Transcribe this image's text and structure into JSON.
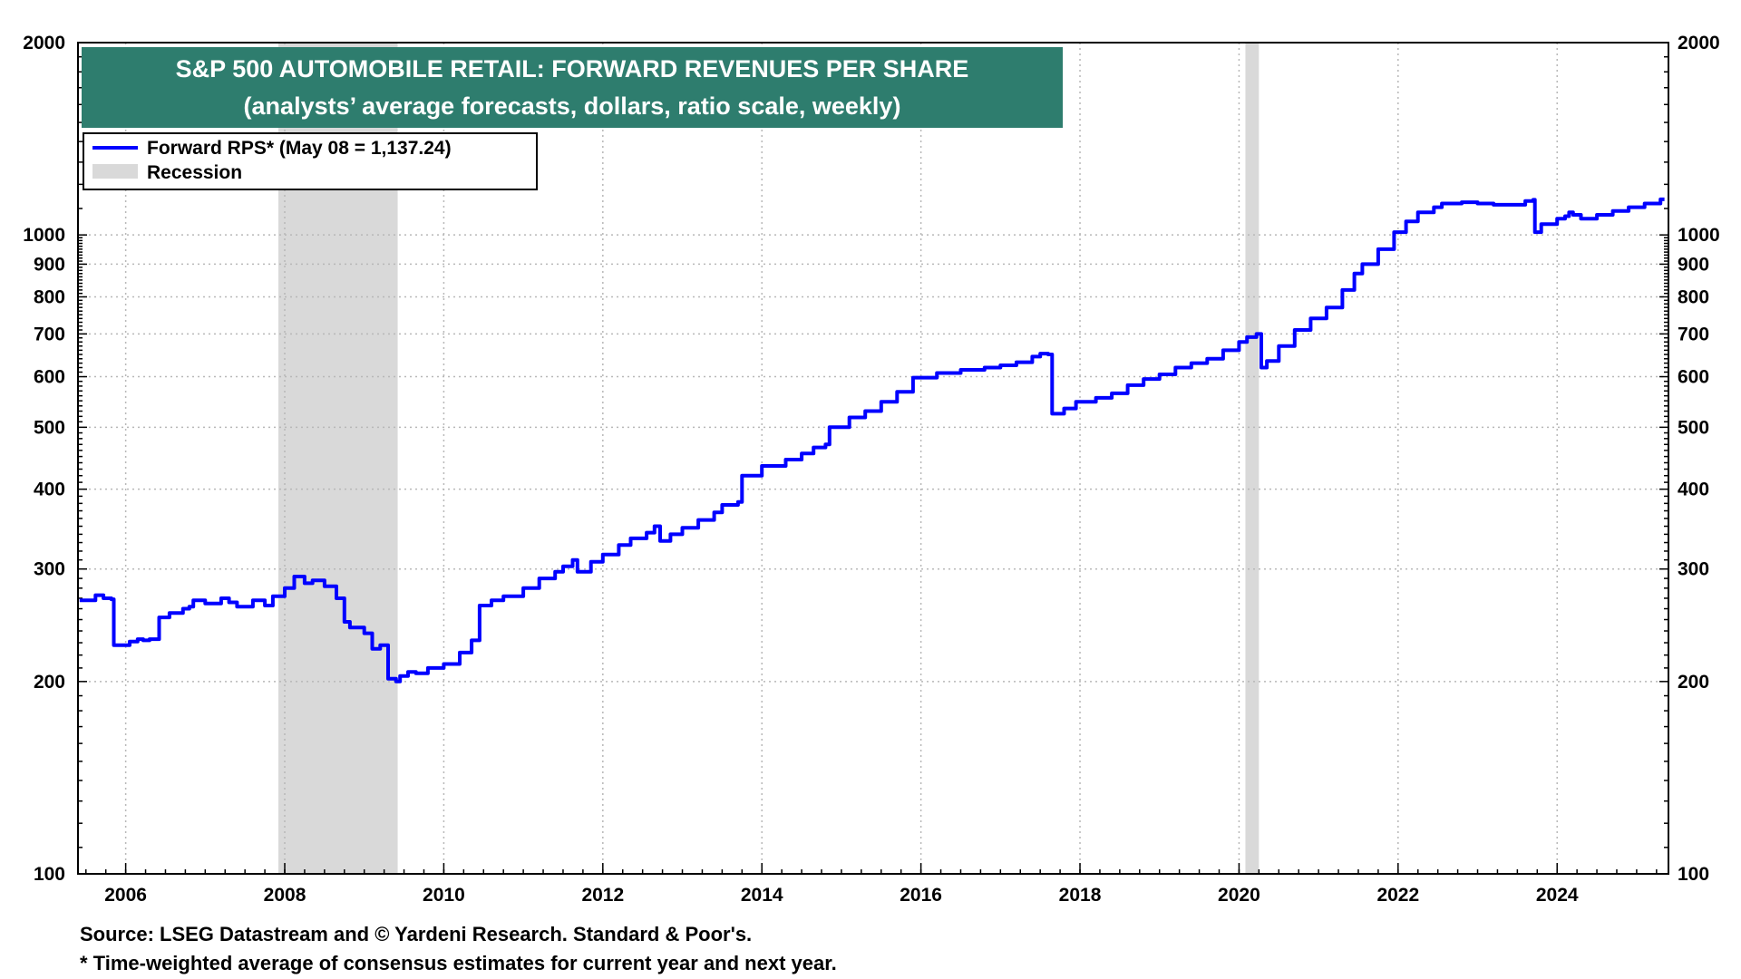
{
  "chart_data": {
    "type": "line",
    "title": "S&P 500 AUTOMOBILE RETAIL: FORWARD REVENUES PER SHARE",
    "subtitle": "(analysts’ average forecasts, dollars, ratio scale, weekly)",
    "y_scale": "log",
    "ylim": [
      100,
      2000
    ],
    "xlim": [
      2005.4,
      2025.4
    ],
    "y_ticks_labeled": [
      100,
      200,
      300,
      400,
      500,
      600,
      700,
      800,
      900,
      1000,
      2000
    ],
    "x_ticks": [
      2006,
      2008,
      2010,
      2012,
      2014,
      2016,
      2018,
      2020,
      2022,
      2024
    ],
    "grid": true,
    "legend_placement": "top-left",
    "legend": [
      {
        "label": "Forward RPS* (May 08 = 1,137.24)",
        "kind": "line",
        "color": "#0000ff"
      },
      {
        "label": "Recession",
        "kind": "band",
        "color": "#d9d9d9"
      }
    ],
    "recessions": [
      {
        "start": 2007.92,
        "end": 2009.42
      },
      {
        "start": 2020.08,
        "end": 2020.25
      }
    ],
    "series": [
      {
        "name": "Forward RPS*",
        "color": "#0000ff",
        "x": [
          2005.42,
          2005.55,
          2005.62,
          2005.72,
          2005.82,
          2005.85,
          2006.05,
          2006.15,
          2006.22,
          2006.3,
          2006.42,
          2006.55,
          2006.72,
          2006.8,
          2006.85,
          2007.0,
          2007.2,
          2007.3,
          2007.4,
          2007.6,
          2007.75,
          2007.85,
          2008.0,
          2008.12,
          2008.25,
          2008.35,
          2008.5,
          2008.65,
          2008.75,
          2008.82,
          2009.0,
          2009.1,
          2009.2,
          2009.3,
          2009.4,
          2009.45,
          2009.55,
          2009.65,
          2009.8,
          2010.0,
          2010.2,
          2010.35,
          2010.45,
          2010.6,
          2010.75,
          2011.0,
          2011.2,
          2011.4,
          2011.5,
          2011.62,
          2011.68,
          2011.85,
          2012.0,
          2012.2,
          2012.35,
          2012.55,
          2012.65,
          2012.72,
          2012.85,
          2013.0,
          2013.2,
          2013.4,
          2013.5,
          2013.7,
          2013.75,
          2014.0,
          2014.3,
          2014.5,
          2014.65,
          2014.8,
          2014.85,
          2015.1,
          2015.3,
          2015.5,
          2015.7,
          2015.9,
          2016.2,
          2016.5,
          2016.8,
          2017.0,
          2017.2,
          2017.4,
          2017.5,
          2017.6,
          2017.65,
          2017.8,
          2017.95,
          2018.2,
          2018.4,
          2018.6,
          2018.8,
          2019.0,
          2019.2,
          2019.4,
          2019.6,
          2019.8,
          2020.0,
          2020.1,
          2020.22,
          2020.28,
          2020.35,
          2020.5,
          2020.7,
          2020.9,
          2021.1,
          2021.3,
          2021.45,
          2021.55,
          2021.75,
          2021.95,
          2022.1,
          2022.25,
          2022.45,
          2022.55,
          2022.8,
          2023.0,
          2023.2,
          2023.4,
          2023.6,
          2023.7,
          2023.72,
          2023.8,
          2024.0,
          2024.1,
          2024.15,
          2024.2,
          2024.3,
          2024.5,
          2024.7,
          2024.9,
          2025.1,
          2025.3,
          2025.35
        ],
        "values": [
          268,
          268,
          273,
          270,
          269,
          228,
          231,
          233,
          232,
          233,
          252,
          256,
          260,
          262,
          268,
          265,
          270,
          266,
          262,
          268,
          263,
          272,
          280,
          292,
          285,
          288,
          282,
          270,
          248,
          243,
          238,
          225,
          228,
          202,
          200,
          204,
          207,
          206,
          210,
          213,
          222,
          232,
          263,
          268,
          272,
          280,
          290,
          297,
          303,
          310,
          297,
          308,
          316,
          327,
          335,
          342,
          350,
          332,
          340,
          348,
          358,
          368,
          378,
          382,
          420,
          435,
          445,
          455,
          465,
          470,
          500,
          518,
          530,
          548,
          568,
          598,
          608,
          615,
          620,
          625,
          632,
          645,
          652,
          650,
          525,
          535,
          548,
          556,
          565,
          582,
          595,
          605,
          620,
          630,
          640,
          660,
          680,
          692,
          700,
          620,
          635,
          670,
          710,
          740,
          770,
          820,
          870,
          900,
          950,
          1010,
          1050,
          1085,
          1105,
          1120,
          1125,
          1120,
          1115,
          1115,
          1130,
          1135,
          1010,
          1040,
          1060,
          1070,
          1085,
          1075,
          1060,
          1075,
          1090,
          1105,
          1120,
          1137,
          1137
        ]
      }
    ]
  },
  "footnotes": {
    "source": "Source: LSEG Datastream and © Yardeni Research. Standard & Poor's.",
    "note": "* Time-weighted average of consensus estimates for current year and next year."
  }
}
